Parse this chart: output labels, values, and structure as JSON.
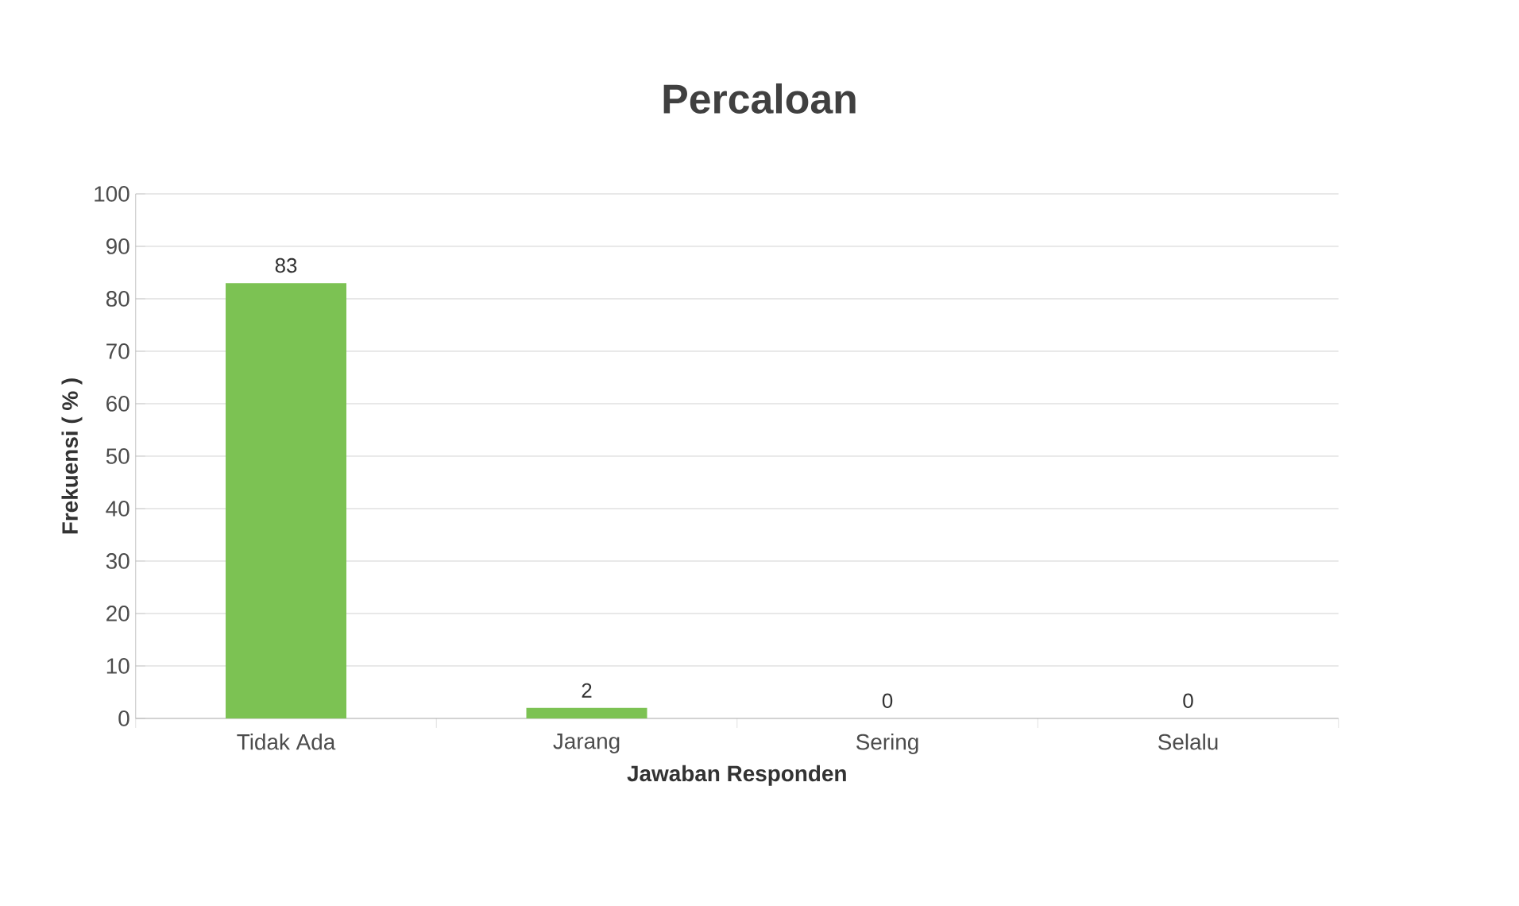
{
  "chart_data": {
    "type": "bar",
    "title": "Percaloan",
    "xlabel": "Jawaban Responden",
    "ylabel": "Frekuensi ( % )",
    "categories": [
      "Tidak Ada",
      "Jarang",
      "Sering",
      "Selalu"
    ],
    "values": [
      83,
      2,
      0,
      0
    ],
    "color": "#7cc253",
    "ylim": [
      0,
      100
    ],
    "yticks": [
      0,
      10,
      20,
      30,
      40,
      50,
      60,
      70,
      80,
      90,
      100
    ],
    "grid": "y",
    "data_labels": true
  }
}
